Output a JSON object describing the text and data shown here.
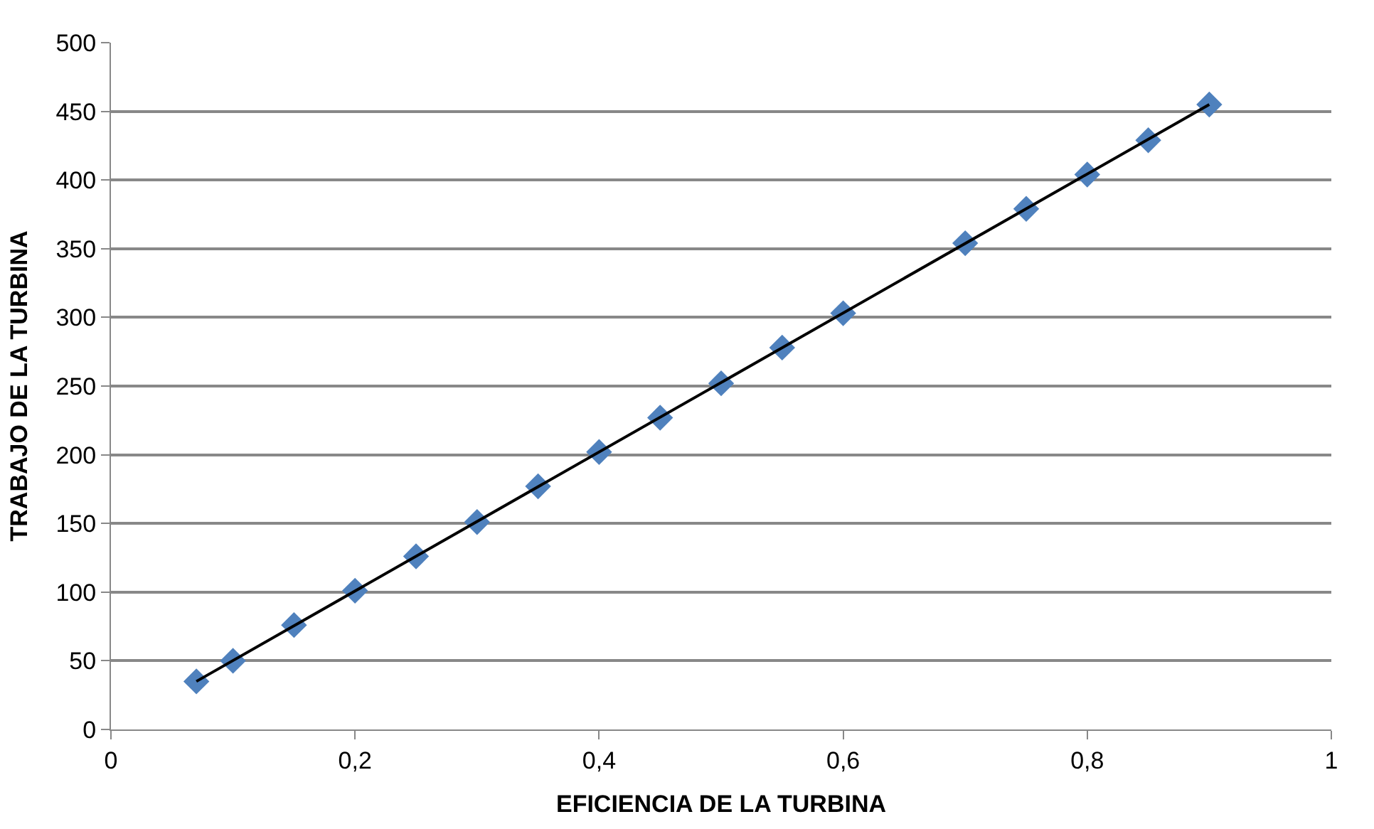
{
  "chart_data": {
    "type": "scatter",
    "xlabel": "EFICIENCIA DE LA TURBINA",
    "ylabel": "TRABAJO DE LA TURBINA",
    "xlim": [
      0,
      1
    ],
    "xticks": [
      0,
      {
        "value": 0.2,
        "label": "0,2"
      },
      {
        "value": 0.4,
        "label": "0,4"
      },
      {
        "value": 0.6,
        "label": "0,6"
      },
      {
        "value": 0.8,
        "label": "0,8"
      },
      1
    ],
    "ylim": [
      0,
      500
    ],
    "yticks": [
      0,
      50,
      100,
      150,
      200,
      250,
      300,
      350,
      400,
      450,
      500
    ],
    "grid": "y",
    "series": [
      {
        "marker": "diamond",
        "color": "#4f81bd",
        "x": [
          0.07,
          0.1,
          0.15,
          0.2,
          0.25,
          0.3,
          0.35,
          0.4,
          0.45,
          0.5,
          0.55,
          0.6,
          0.7,
          0.75,
          0.8,
          0.85,
          0.9
        ],
        "values": [
          35,
          50,
          76,
          101,
          126,
          151,
          177,
          202,
          227,
          252,
          278,
          303,
          354,
          379,
          404,
          429,
          455
        ]
      },
      {
        "type": "line",
        "marker": "none",
        "line_style": "solid",
        "color": "#000000",
        "x": [
          0.07,
          0.9
        ],
        "values": [
          35,
          455
        ]
      }
    ]
  }
}
